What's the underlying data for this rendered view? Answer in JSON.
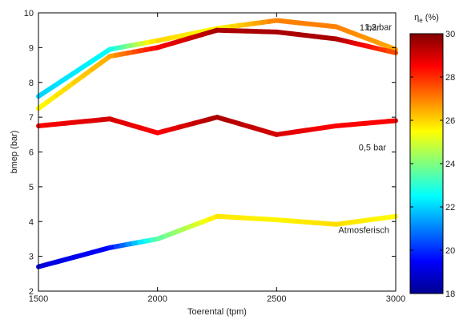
{
  "chart_data": {
    "type": "line",
    "xlabel": "Toerental (tpm)",
    "ylabel": "bmep (bar)",
    "xlim": [
      1500,
      3000
    ],
    "ylim": [
      2,
      10
    ],
    "xticks": [
      1500,
      2000,
      2500,
      3000
    ],
    "yticks": [
      2,
      3,
      4,
      5,
      6,
      7,
      8,
      9,
      10
    ],
    "grid": false,
    "series": [
      {
        "name": "1,2 bar",
        "x": [
          1500,
          1800,
          2000,
          2250,
          2500,
          2750,
          3000
        ],
        "y": [
          7.6,
          8.95,
          9.2,
          9.55,
          9.78,
          9.6,
          8.95
        ],
        "efficiency": [
          22,
          22.5,
          26,
          25.5,
          27,
          27,
          26.5
        ]
      },
      {
        "name": "1 bar",
        "x": [
          1500,
          1800,
          2000,
          2250,
          2500,
          2750,
          3000
        ],
        "y": [
          7.25,
          8.75,
          9.0,
          9.5,
          9.45,
          9.25,
          8.85
        ],
        "efficiency": [
          25.5,
          26.5,
          28.5,
          29.5,
          29.5,
          29.5,
          27.5
        ]
      },
      {
        "name": "0,5 bar",
        "x": [
          1500,
          1800,
          2000,
          2250,
          2500,
          2750,
          3000
        ],
        "y": [
          6.75,
          6.95,
          6.55,
          7.0,
          6.5,
          6.75,
          6.9
        ],
        "efficiency": [
          28.5,
          29,
          28.5,
          29.5,
          29,
          28.5,
          28.5
        ]
      },
      {
        "name": "Atmosferisch",
        "x": [
          1500,
          1800,
          2000,
          2250,
          2500,
          2750,
          3000
        ],
        "y": [
          2.7,
          3.25,
          3.5,
          4.15,
          4.05,
          3.92,
          4.15
        ],
        "efficiency": [
          19,
          19.5,
          23.5,
          25.8,
          25.6,
          25.9,
          25.5
        ]
      }
    ],
    "colorbar": {
      "label": "η",
      "label_sub": "e",
      "label_suffix": " (%)",
      "min": 18,
      "max": 30,
      "ticks": [
        18,
        20,
        22,
        24,
        26,
        28,
        30
      ]
    }
  }
}
